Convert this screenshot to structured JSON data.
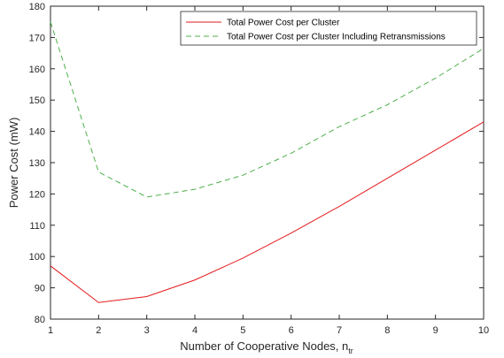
{
  "chart_data": {
    "type": "line",
    "xlabel": "Number of Cooperative Nodes, n",
    "xlabel_subscript": "tr",
    "ylabel": "Power Cost (mW)",
    "xlim": [
      1,
      10
    ],
    "ylim": [
      80,
      180
    ],
    "xticks": [
      "1",
      "2",
      "3",
      "4",
      "5",
      "6",
      "7",
      "8",
      "9",
      "10"
    ],
    "yticks": [
      "80",
      "90",
      "100",
      "110",
      "120",
      "130",
      "140",
      "150",
      "160",
      "170",
      "180"
    ],
    "grid": false,
    "legend_position": "top-right",
    "x": [
      1,
      2,
      3,
      4,
      5,
      6,
      7,
      8,
      9,
      10
    ],
    "series": [
      {
        "name": "Total Power Cost per Cluster",
        "color": "#e41a1c",
        "style": "solid",
        "values": [
          97,
          85.3,
          87.2,
          92.5,
          99.5,
          107.5,
          116,
          125,
          134,
          143
        ]
      },
      {
        "name": "Total Power Cost per Cluster Including Retransmissions",
        "color": "#4daf4a",
        "style": "dashed",
        "values": [
          175,
          127,
          119,
          121.5,
          126,
          133,
          141.5,
          148.5,
          157,
          166.5
        ]
      }
    ]
  }
}
